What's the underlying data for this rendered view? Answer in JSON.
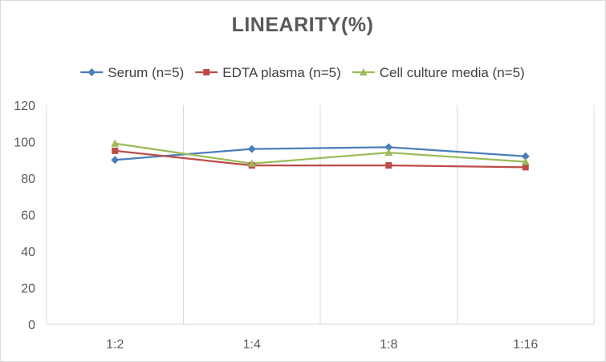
{
  "chart_data": {
    "type": "line",
    "title": "LINEARITY(%)",
    "xlabel": "",
    "ylabel": "",
    "categories": [
      "1:2",
      "1:4",
      "1:8",
      "1:16"
    ],
    "ylim": [
      0,
      120
    ],
    "yticks": [
      0,
      20,
      40,
      60,
      80,
      100,
      120
    ],
    "grid": "vertical",
    "legend_position": "top",
    "series": [
      {
        "name": "Serum (n=5)",
        "values": [
          90,
          96,
          97,
          92
        ],
        "color": "#4a7ebb",
        "marker": "diamond"
      },
      {
        "name": "EDTA plasma (n=5)",
        "values": [
          95,
          87,
          87,
          86
        ],
        "color": "#be4b48",
        "marker": "square"
      },
      {
        "name": "Cell culture media (n=5)",
        "values": [
          99,
          88,
          94,
          89
        ],
        "color": "#9bbb59",
        "marker": "triangle"
      }
    ]
  }
}
